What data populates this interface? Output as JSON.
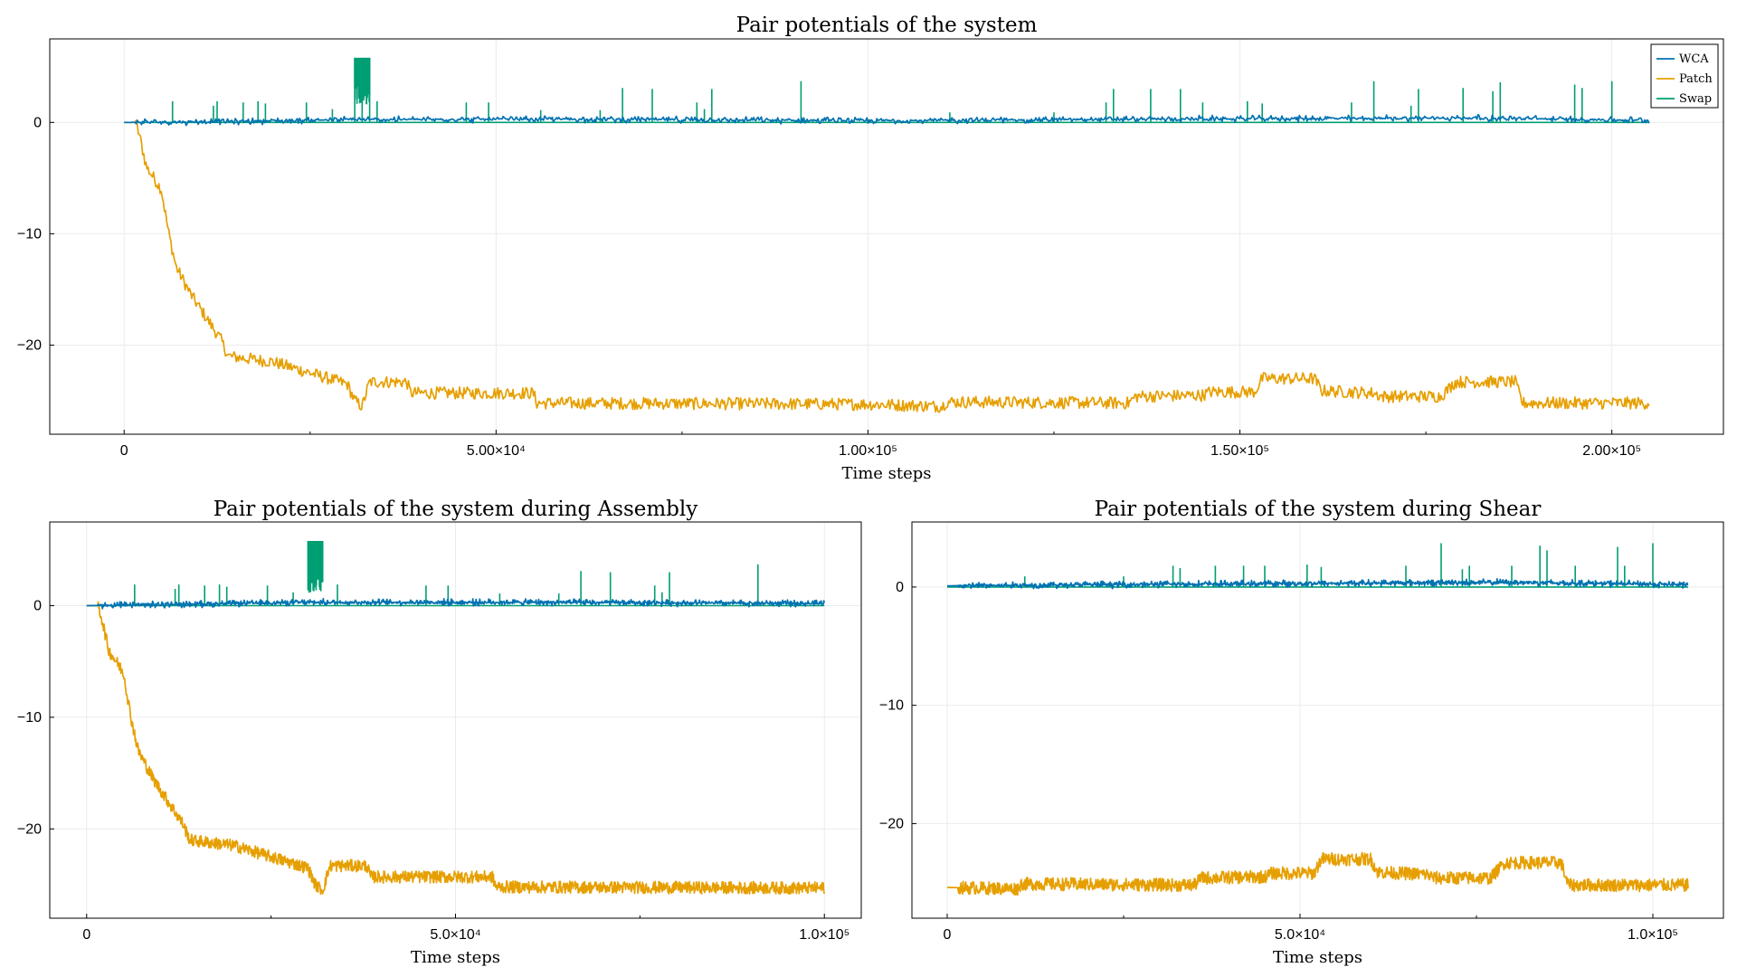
{
  "colors": {
    "wca": "#0072b2",
    "patch": "#e69f00",
    "swap": "#009e73"
  },
  "chart_data": [
    {
      "id": "full",
      "type": "line",
      "title": "Pair potentials of the system",
      "xlabel": "Time steps",
      "ylabel": "",
      "xlim": [
        -10000,
        215000
      ],
      "ylim": [
        -28,
        7.5
      ],
      "xticks": [
        0,
        50000,
        100000,
        150000,
        200000
      ],
      "xtick_labels": [
        "0",
        "5.00×10⁴",
        "1.00×10⁵",
        "1.50×10⁵",
        "2.00×10⁵"
      ],
      "yticks": [
        0,
        -10,
        -20
      ],
      "ytick_labels": [
        "0",
        "−10",
        "−20"
      ],
      "legend": {
        "position": "top-right",
        "entries": [
          "WCA",
          "Patch",
          "Swap"
        ]
      },
      "series": [
        {
          "name": "WCA",
          "color": "#0072b2",
          "points": [
            [
              0,
              0
            ],
            [
              15000,
              0.1
            ],
            [
              30000,
              0.25
            ],
            [
              60000,
              0.3
            ],
            [
              100000,
              0.15
            ],
            [
              140000,
              0.3
            ],
            [
              180000,
              0.4
            ],
            [
              205000,
              0.2
            ]
          ]
        },
        {
          "name": "Patch",
          "color": "#e69f00",
          "points": [
            [
              0,
              0
            ],
            [
              1500,
              0
            ],
            [
              2000,
              -1
            ],
            [
              3000,
              -4
            ],
            [
              5000,
              -6
            ],
            [
              6000,
              -10
            ],
            [
              7000,
              -13
            ],
            [
              9000,
              -15.5
            ],
            [
              11000,
              -17.5
            ],
            [
              13000,
              -19.5
            ],
            [
              14000,
              -21
            ],
            [
              20000,
              -21.5
            ],
            [
              25000,
              -22.5
            ],
            [
              30000,
              -23.5
            ],
            [
              31000,
              -25
            ],
            [
              32000,
              -25.5
            ],
            [
              33000,
              -23.3
            ],
            [
              38000,
              -23.3
            ],
            [
              38500,
              -24.3
            ],
            [
              55000,
              -24.3
            ],
            [
              55500,
              -25.2
            ],
            [
              100000,
              -25.3
            ],
            [
              110000,
              -25.5
            ],
            [
              110500,
              -25.1
            ],
            [
              135000,
              -25.2
            ],
            [
              136000,
              -24.6
            ],
            [
              145000,
              -24.5
            ],
            [
              146000,
              -24.2
            ],
            [
              152000,
              -24.2
            ],
            [
              153000,
              -23
            ],
            [
              160000,
              -23
            ],
            [
              161000,
              -24.1
            ],
            [
              168000,
              -24.3
            ],
            [
              169000,
              -24.6
            ],
            [
              177000,
              -24.6
            ],
            [
              179000,
              -23.3
            ],
            [
              187000,
              -23.3
            ],
            [
              188000,
              -25.2
            ],
            [
              205000,
              -25.2
            ]
          ]
        },
        {
          "name": "Swap",
          "color": "#009e73",
          "points": [
            [
              0,
              0
            ],
            [
              205000,
              0
            ]
          ],
          "spikes": [
            [
              6500,
              1.9
            ],
            [
              12000,
              1.5
            ],
            [
              12500,
              1.9
            ],
            [
              16000,
              1.8
            ],
            [
              18000,
              1.9
            ],
            [
              19000,
              1.7
            ],
            [
              24500,
              1.8
            ],
            [
              28000,
              1.2
            ],
            [
              31000,
              5.8
            ],
            [
              32000,
              5.8
            ],
            [
              33000,
              5.8
            ],
            [
              34000,
              1.9
            ],
            [
              46000,
              1.8
            ],
            [
              49000,
              1.8
            ],
            [
              56000,
              1.1
            ],
            [
              64000,
              1.1
            ],
            [
              67000,
              3.1
            ],
            [
              71000,
              3.0
            ],
            [
              77000,
              1.8
            ],
            [
              78000,
              1.2
            ],
            [
              79000,
              3.0
            ],
            [
              91000,
              3.7
            ],
            [
              111000,
              0.9
            ],
            [
              125000,
              0.9
            ],
            [
              132000,
              1.8
            ],
            [
              133000,
              3.0
            ],
            [
              138000,
              3.0
            ],
            [
              142000,
              3.0
            ],
            [
              145000,
              1.8
            ],
            [
              151000,
              1.9
            ],
            [
              153000,
              1.7
            ],
            [
              165000,
              1.8
            ],
            [
              168000,
              3.7
            ],
            [
              173000,
              1.5
            ],
            [
              174000,
              3.0
            ],
            [
              180000,
              3.1
            ],
            [
              184000,
              2.8
            ],
            [
              185000,
              3.6
            ],
            [
              195000,
              3.4
            ],
            [
              196000,
              3.1
            ],
            [
              200000,
              3.7
            ]
          ],
          "block": [
            31000,
            33000,
            5.8
          ]
        }
      ]
    },
    {
      "id": "assembly",
      "type": "line",
      "title": "Pair potentials of the system during Assembly",
      "xlabel": "Time steps",
      "ylabel": "",
      "xlim": [
        -5000,
        105000
      ],
      "ylim": [
        -28,
        7.5
      ],
      "xticks": [
        0,
        50000,
        100000
      ],
      "xtick_labels": [
        "0",
        "5.0×10⁴",
        "1.0×10⁵"
      ],
      "yticks": [
        0,
        -10,
        -20
      ],
      "ytick_labels": [
        "0",
        "−10",
        "−20"
      ],
      "series": [
        {
          "name": "WCA",
          "color": "#0072b2",
          "points": [
            [
              0,
              0
            ],
            [
              10000,
              0.1
            ],
            [
              30000,
              0.3
            ],
            [
              60000,
              0.3
            ],
            [
              100000,
              0.2
            ]
          ]
        },
        {
          "name": "Patch",
          "color": "#e69f00",
          "points": [
            [
              0,
              0
            ],
            [
              1500,
              0
            ],
            [
              2000,
              -1
            ],
            [
              3000,
              -4
            ],
            [
              5000,
              -6
            ],
            [
              6000,
              -10
            ],
            [
              7000,
              -13
            ],
            [
              9000,
              -15.5
            ],
            [
              11000,
              -17.5
            ],
            [
              13000,
              -19.5
            ],
            [
              14000,
              -21
            ],
            [
              20000,
              -21.5
            ],
            [
              25000,
              -22.5
            ],
            [
              30000,
              -23.5
            ],
            [
              31000,
              -25
            ],
            [
              32000,
              -25.5
            ],
            [
              33000,
              -23.3
            ],
            [
              38000,
              -23.3
            ],
            [
              38500,
              -24.3
            ],
            [
              55000,
              -24.3
            ],
            [
              55500,
              -25.2
            ],
            [
              100000,
              -25.3
            ]
          ]
        },
        {
          "name": "Swap",
          "color": "#009e73",
          "points": [
            [
              0,
              0
            ],
            [
              100000,
              0
            ]
          ],
          "spikes": [
            [
              6500,
              1.9
            ],
            [
              12000,
              1.5
            ],
            [
              12500,
              1.9
            ],
            [
              16000,
              1.8
            ],
            [
              18000,
              1.9
            ],
            [
              19000,
              1.7
            ],
            [
              24500,
              1.8
            ],
            [
              28000,
              1.2
            ],
            [
              34000,
              1.9
            ],
            [
              46000,
              1.8
            ],
            [
              49000,
              1.8
            ],
            [
              56000,
              1.1
            ],
            [
              64000,
              1.1
            ],
            [
              67000,
              3.1
            ],
            [
              71000,
              3.0
            ],
            [
              77000,
              1.8
            ],
            [
              78000,
              1.2
            ],
            [
              79000,
              3.0
            ],
            [
              91000,
              3.7
            ]
          ],
          "block": [
            30000,
            32000,
            5.8
          ]
        }
      ]
    },
    {
      "id": "shear",
      "type": "line",
      "title": "Pair potentials of the system during Shear",
      "xlabel": "Time steps",
      "ylabel": "",
      "xlim": [
        -5000,
        110000
      ],
      "ylim": [
        -28,
        5.5
      ],
      "xticks": [
        0,
        50000,
        100000
      ],
      "xtick_labels": [
        "0",
        "5.0×10⁴",
        "1.0×10⁵"
      ],
      "yticks": [
        0,
        -10,
        -20
      ],
      "ytick_labels": [
        "0",
        "−10",
        "−20"
      ],
      "series": [
        {
          "name": "WCA",
          "color": "#0072b2",
          "points": [
            [
              0,
              0.1
            ],
            [
              20000,
              0.2
            ],
            [
              50000,
              0.3
            ],
            [
              80000,
              0.4
            ],
            [
              105000,
              0.2
            ]
          ]
        },
        {
          "name": "Patch",
          "color": "#e69f00",
          "points": [
            [
              0,
              -25.4
            ],
            [
              10000,
              -25.5
            ],
            [
              10500,
              -25.1
            ],
            [
              35000,
              -25.2
            ],
            [
              36000,
              -24.6
            ],
            [
              45000,
              -24.5
            ],
            [
              46000,
              -24.2
            ],
            [
              52000,
              -24.2
            ],
            [
              53000,
              -23
            ],
            [
              60000,
              -23
            ],
            [
              61000,
              -24.1
            ],
            [
              68000,
              -24.3
            ],
            [
              69000,
              -24.6
            ],
            [
              77000,
              -24.6
            ],
            [
              79000,
              -23.3
            ],
            [
              87000,
              -23.3
            ],
            [
              88000,
              -25.2
            ],
            [
              105000,
              -25.2
            ]
          ]
        },
        {
          "name": "Swap",
          "color": "#009e73",
          "points": [
            [
              0,
              0
            ],
            [
              105000,
              0
            ]
          ],
          "spikes": [
            [
              11000,
              0.9
            ],
            [
              25000,
              0.9
            ],
            [
              32000,
              1.8
            ],
            [
              33000,
              1.6
            ],
            [
              38000,
              1.8
            ],
            [
              42000,
              1.8
            ],
            [
              45000,
              1.8
            ],
            [
              51000,
              1.9
            ],
            [
              53000,
              1.7
            ],
            [
              65000,
              1.8
            ],
            [
              70000,
              3.7
            ],
            [
              73000,
              1.5
            ],
            [
              74000,
              1.8
            ],
            [
              80000,
              1.8
            ],
            [
              84000,
              3.5
            ],
            [
              85000,
              3.1
            ],
            [
              89000,
              1.8
            ],
            [
              95000,
              3.4
            ],
            [
              96000,
              1.8
            ],
            [
              100000,
              3.7
            ]
          ]
        }
      ]
    }
  ]
}
